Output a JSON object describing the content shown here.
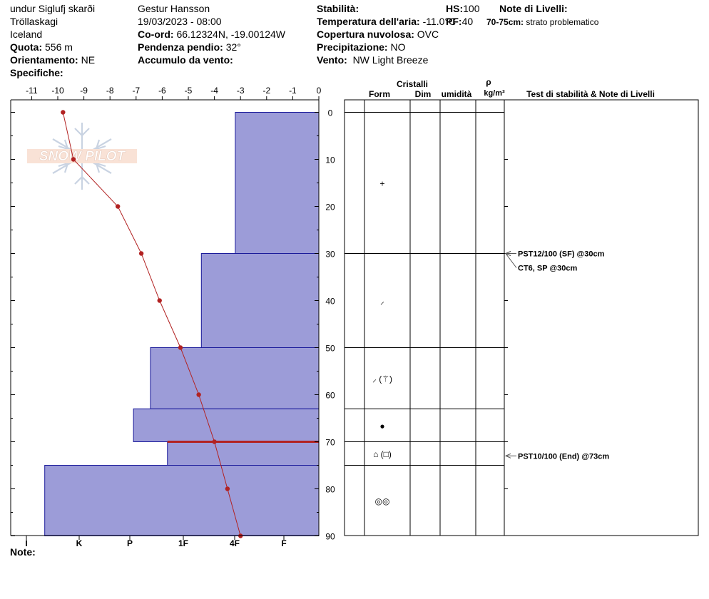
{
  "header": {
    "location_name": "undur Siglufj skarði",
    "region": "Tröllaskagi",
    "country": "Iceland",
    "elevation_label": "Quota:",
    "elevation_value": "556 m",
    "aspect_label": "Orientamento:",
    "aspect_value": "NE",
    "specifics_label": "Specifiche:",
    "observer": "Gestur Hansson",
    "datetime": "19/03/2023 - 08:00",
    "coord_label": "Co-ord:",
    "coord_value": "66.12324N, -19.00124W",
    "slope_label": "Pendenza pendio:",
    "slope_value": "32°",
    "wind_loading_label": "Accumulo da vento:",
    "wind_loading_value": "",
    "stability_label": "Stabilità:",
    "air_temp_label": "Temperatura dell'aria:",
    "air_temp_value": "-11.0°C",
    "sky_label": "Copertura nuvolosa:",
    "sky_value": "OVC",
    "precip_label": "Precipitazione:",
    "precip_value": "NO",
    "wind_label": "Vento:",
    "wind_value": "NW Light Breeze",
    "hs_label": "HS:",
    "hs_value": "100",
    "pf_label": "PF:",
    "pf_value": "40",
    "layer_notes_label": "Note di Livelli:",
    "layer_note_range": "70-75cm:",
    "layer_note_text": "strato problematico"
  },
  "watermark": {
    "text": "SNOW PILOT"
  },
  "footer": {
    "notes_label": "Note:"
  },
  "table": {
    "header_crystals": "Cristalli",
    "col_form": "Form",
    "col_size": "Dim",
    "col_moisture": "umidità",
    "col_density_symbol": "ρ",
    "col_density_unit": "kg/m³",
    "col_tests": "Test di stabilità & Note di Livelli"
  },
  "colors": {
    "hardness_fill": "#9c9cd8",
    "hardness_stroke": "#1a1a9a",
    "temp_line": "#b22222",
    "problem_layer": "#b22222",
    "axis": "#000000"
  },
  "chart_data": {
    "type": "snow_profile",
    "temperature_axis": {
      "min": -11.5,
      "max": 0,
      "ticks": [
        -11,
        -10,
        -9,
        -8,
        -7,
        -6,
        -5,
        -4,
        -3,
        -2,
        -1,
        0
      ],
      "position": "top"
    },
    "depth_axis": {
      "min": 0,
      "max": 90,
      "ticks": [
        0,
        10,
        20,
        30,
        40,
        50,
        60,
        70,
        80,
        90
      ],
      "position": "right"
    },
    "hardness_axis": {
      "labels": [
        "I",
        "K",
        "P",
        "1F",
        "4F",
        "F"
      ],
      "position": "bottom"
    },
    "temperature_series": {
      "depths": [
        0,
        10,
        20,
        30,
        40,
        50,
        60,
        70,
        80,
        90
      ],
      "temps": [
        -9.8,
        -9.4,
        -7.7,
        -6.8,
        -6.1,
        -5.3,
        -4.6,
        -4.0,
        -3.5,
        -3.0
      ]
    },
    "layers": [
      {
        "top": 0,
        "bottom": 30,
        "hardness_temp": -3.2,
        "form": "+",
        "size": "",
        "moisture": "",
        "density": ""
      },
      {
        "top": 30,
        "bottom": 50,
        "hardness_temp": -4.5,
        "form": "⸝",
        "size": "",
        "moisture": "",
        "density": ""
      },
      {
        "top": 50,
        "bottom": 63,
        "hardness_temp": -6.45,
        "form": "⸝ (⚚)",
        "size": "",
        "moisture": "",
        "density": ""
      },
      {
        "top": 63,
        "bottom": 70,
        "hardness_temp": -7.1,
        "form": "●",
        "size": "",
        "moisture": "",
        "density": ""
      },
      {
        "top": 70,
        "bottom": 75,
        "hardness_temp": -5.8,
        "form": "⌂ (□)",
        "size": "",
        "moisture": "",
        "density": ""
      },
      {
        "top": 75,
        "bottom": 90,
        "hardness_temp": -10.5,
        "form": "◎◎",
        "size": "",
        "moisture": "",
        "density": ""
      }
    ],
    "problem_layer_depth": 70,
    "stability_tests": [
      {
        "label": "PST12/100 (SF) @30cm",
        "depth": 30
      },
      {
        "label": "CT6, SP @30cm",
        "depth": 30
      },
      {
        "label": "PST10/100 (End) @73cm",
        "depth": 73
      }
    ]
  }
}
